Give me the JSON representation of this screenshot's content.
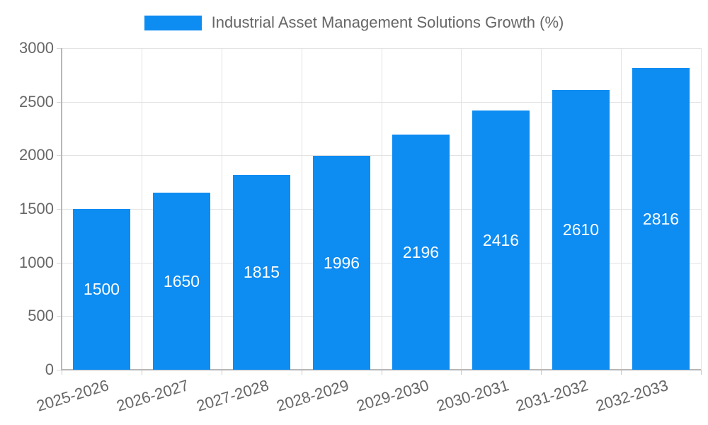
{
  "legend": {
    "label": "Industrial Asset Management Solutions Growth (%)"
  },
  "chart_data": {
    "type": "bar",
    "title": "Industrial Asset Management Solutions Growth (%)",
    "categories": [
      "2025-2026",
      "2026-2027",
      "2027-2028",
      "2028-2029",
      "2029-2030",
      "2030-2031",
      "2031-2032",
      "2032-2033"
    ],
    "values": [
      1500,
      1650,
      1815,
      1996,
      2196,
      2416,
      2610,
      2816
    ],
    "xlabel": "",
    "ylabel": "",
    "ylim": [
      0,
      3000
    ],
    "yticks": [
      0,
      500,
      1000,
      1500,
      2000,
      2500,
      3000
    ],
    "grid": true,
    "legend_position": "top",
    "colors": {
      "bar": "#0D8CF2",
      "bar_value_label": "#FFFFFF",
      "axis_text": "#666666",
      "gridline": "#E3E3E3",
      "axis_line": "#B7B7B7"
    }
  }
}
